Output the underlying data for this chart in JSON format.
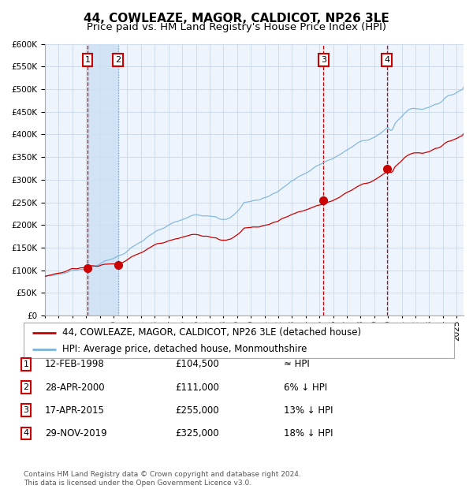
{
  "title": "44, COWLEAZE, MAGOR, CALDICOT, NP26 3LE",
  "subtitle": "Price paid vs. HM Land Registry's House Price Index (HPI)",
  "ylim": [
    0,
    600000
  ],
  "yticks": [
    0,
    50000,
    100000,
    150000,
    200000,
    250000,
    300000,
    350000,
    400000,
    450000,
    500000,
    550000,
    600000
  ],
  "xlim_start": 1995.0,
  "xlim_end": 2025.5,
  "hpi_color": "#7ab3d9",
  "price_color": "#cc0000",
  "grid_color": "#c8d8e8",
  "background_color": "#ffffff",
  "plot_bg_color": "#eef4fb",
  "legend_entries": [
    "44, COWLEAZE, MAGOR, CALDICOT, NP26 3LE (detached house)",
    "HPI: Average price, detached house, Monmouthshire"
  ],
  "sale_dates_decimal": [
    1998.11,
    2000.33,
    2015.29,
    2019.91
  ],
  "sale_prices": [
    104500,
    111000,
    255000,
    325000
  ],
  "sale_labels": [
    "1",
    "2",
    "3",
    "4"
  ],
  "vline_color": "#cc0000",
  "vline_color2": "#7799bb",
  "shade_color": "#cce0f5",
  "table_rows": [
    [
      "1",
      "12-FEB-1998",
      "£104,500",
      "≈ HPI"
    ],
    [
      "2",
      "28-APR-2000",
      "£111,000",
      "6% ↓ HPI"
    ],
    [
      "3",
      "17-APR-2015",
      "£255,000",
      "13% ↓ HPI"
    ],
    [
      "4",
      "29-NOV-2019",
      "£325,000",
      "18% ↓ HPI"
    ]
  ],
  "footnote": "Contains HM Land Registry data © Crown copyright and database right 2024.\nThis data is licensed under the Open Government Licence v3.0.",
  "title_fontsize": 11,
  "subtitle_fontsize": 9.5,
  "tick_fontsize": 7.5,
  "legend_fontsize": 8.5,
  "table_fontsize": 8.5,
  "footnote_fontsize": 6.5
}
